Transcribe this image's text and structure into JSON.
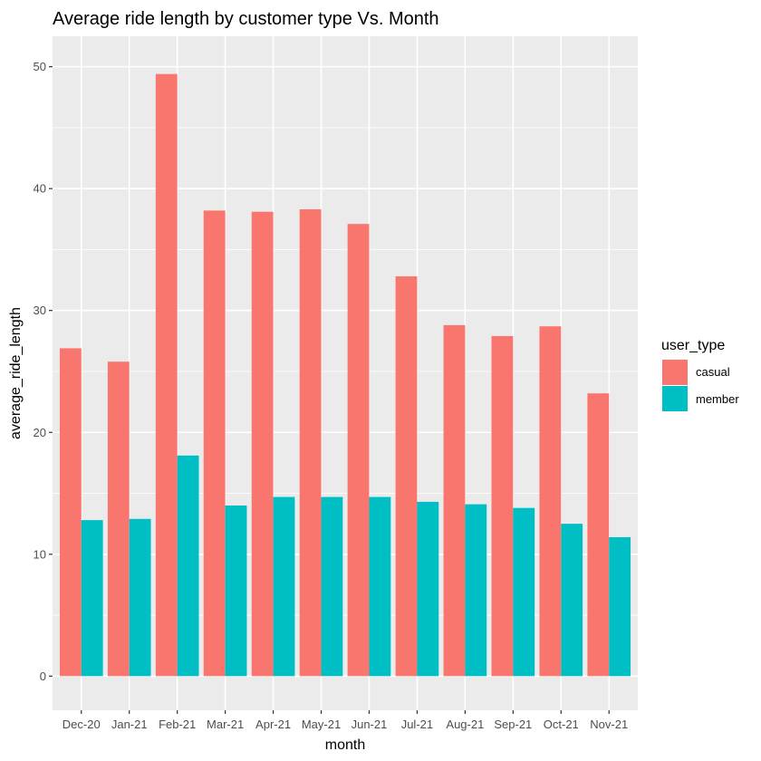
{
  "chart_data": {
    "type": "bar",
    "title": "Average ride length by customer type Vs. Month",
    "xlabel": "month",
    "ylabel": "average_ride_length",
    "ylim": [
      -2.8,
      52.5
    ],
    "yticks": [
      0,
      10,
      20,
      30,
      40,
      50
    ],
    "ytick_labels": [
      "0",
      "10",
      "20",
      "30",
      "40",
      "50"
    ],
    "grid": true,
    "legend": {
      "title": "user_type",
      "position": "right"
    },
    "categories": [
      "Dec-20",
      "Jan-21",
      "Feb-21",
      "Mar-21",
      "Apr-21",
      "May-21",
      "Jun-21",
      "Jul-21",
      "Aug-21",
      "Sep-21",
      "Oct-21",
      "Nov-21"
    ],
    "series": [
      {
        "name": "casual",
        "color": "#F8766D",
        "values": [
          26.9,
          25.8,
          49.4,
          38.2,
          38.1,
          38.3,
          37.1,
          32.8,
          28.8,
          27.9,
          28.7,
          23.2
        ]
      },
      {
        "name": "member",
        "color": "#00BFC4",
        "values": [
          12.8,
          12.9,
          18.1,
          14.0,
          14.7,
          14.7,
          14.7,
          14.3,
          14.1,
          13.8,
          12.5,
          11.4
        ]
      }
    ],
    "panel_color": "#EBEBEB",
    "grid_color": "#FFFFFF"
  }
}
